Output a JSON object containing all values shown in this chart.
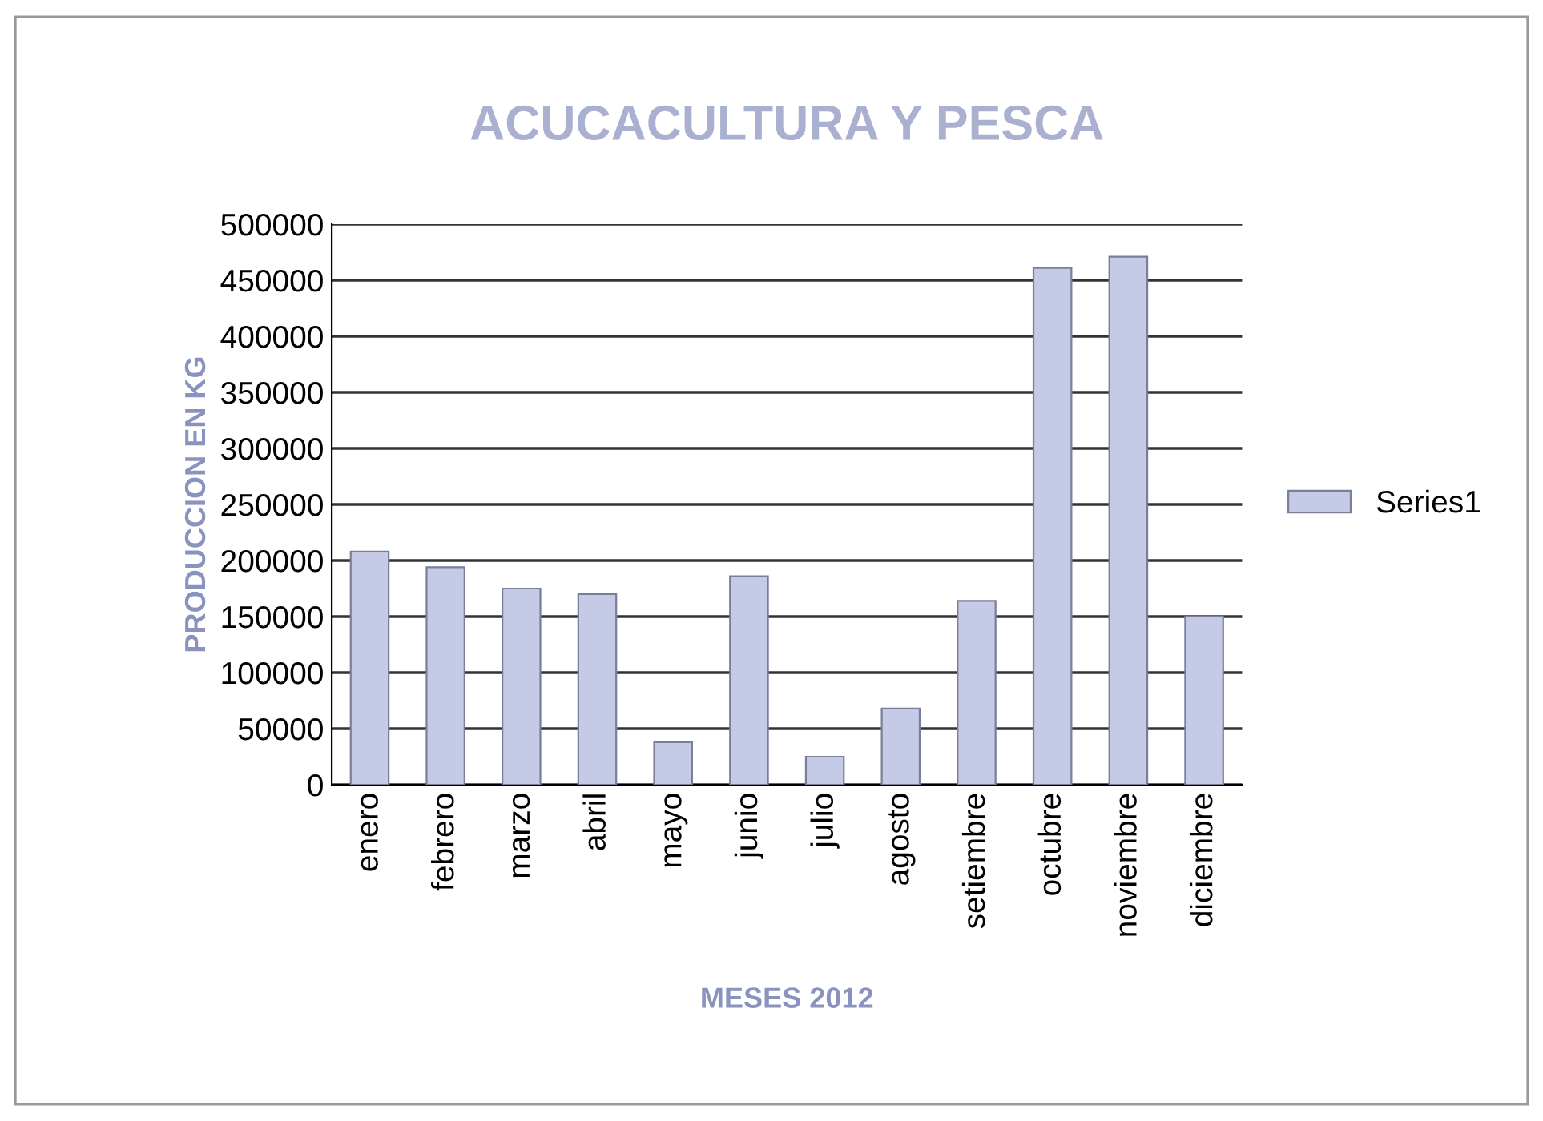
{
  "chart_data": {
    "type": "bar",
    "title": "ACUCACULTURA Y PESCA",
    "xlabel": "MESES 2012",
    "ylabel": "PRODUCCION EN KG",
    "categories": [
      "enero",
      "febrero",
      "marzo",
      "abril",
      "mayo",
      "junio",
      "julio",
      "agosto",
      "setiembre",
      "octubre",
      "noviembre",
      "diciembre"
    ],
    "series": [
      {
        "name": "Series1",
        "color": "#c5cae6",
        "values": [
          208000,
          194000,
          175000,
          170000,
          38000,
          186000,
          25000,
          68000,
          164000,
          461000,
          471000,
          150000
        ]
      }
    ],
    "ylim": [
      0,
      500000
    ],
    "yticks": [
      0,
      50000,
      100000,
      150000,
      200000,
      250000,
      300000,
      350000,
      400000,
      450000,
      500000
    ],
    "grid": "y",
    "legend": "right"
  }
}
